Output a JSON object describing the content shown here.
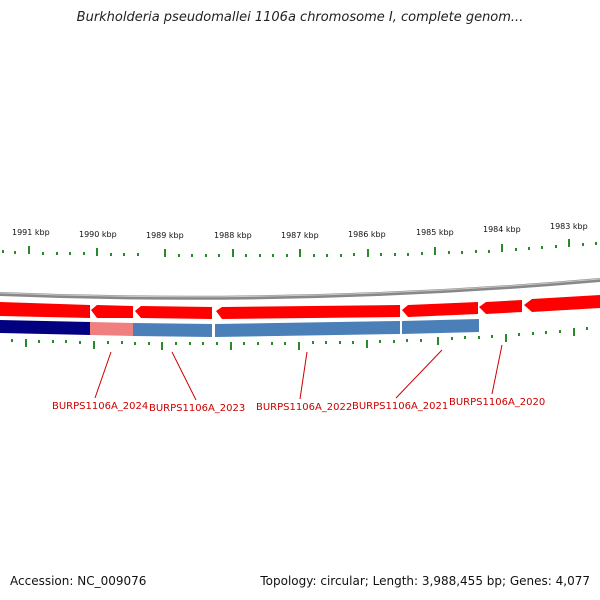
{
  "title": "Burkholderia pseudomallei 1106a chromosome I, complete genom...",
  "ruler": {
    "labels": [
      "1991 kbp",
      "1990 kbp",
      "1989 kbp",
      "1988 kbp",
      "1987 kbp",
      "1986 kbp",
      "1985 kbp",
      "1984 kbp",
      "1983 kbp"
    ]
  },
  "genes": [
    {
      "label": "BURPS1106A_2024",
      "strand": "minus"
    },
    {
      "label": "BURPS1106A_2023",
      "strand": "minus"
    },
    {
      "label": "BURPS1106A_2022",
      "strand": "minus"
    },
    {
      "label": "BURPS1106A_2021",
      "strand": "minus"
    },
    {
      "label": "BURPS1106A_2020",
      "strand": "minus"
    }
  ],
  "footer": {
    "accession": "Accession: NC_009076",
    "summary": "Topology: circular; Length: 3,988,455 bp; Genes: 4,077"
  },
  "colors": {
    "cds": "#ff0000",
    "cds_light": "#f08080",
    "gene_track_blue": "#4a7fb8",
    "gene_track_navy": "#000080",
    "backbone": "#888888",
    "tick": "#2a8a2a",
    "label": "#cc0000"
  }
}
